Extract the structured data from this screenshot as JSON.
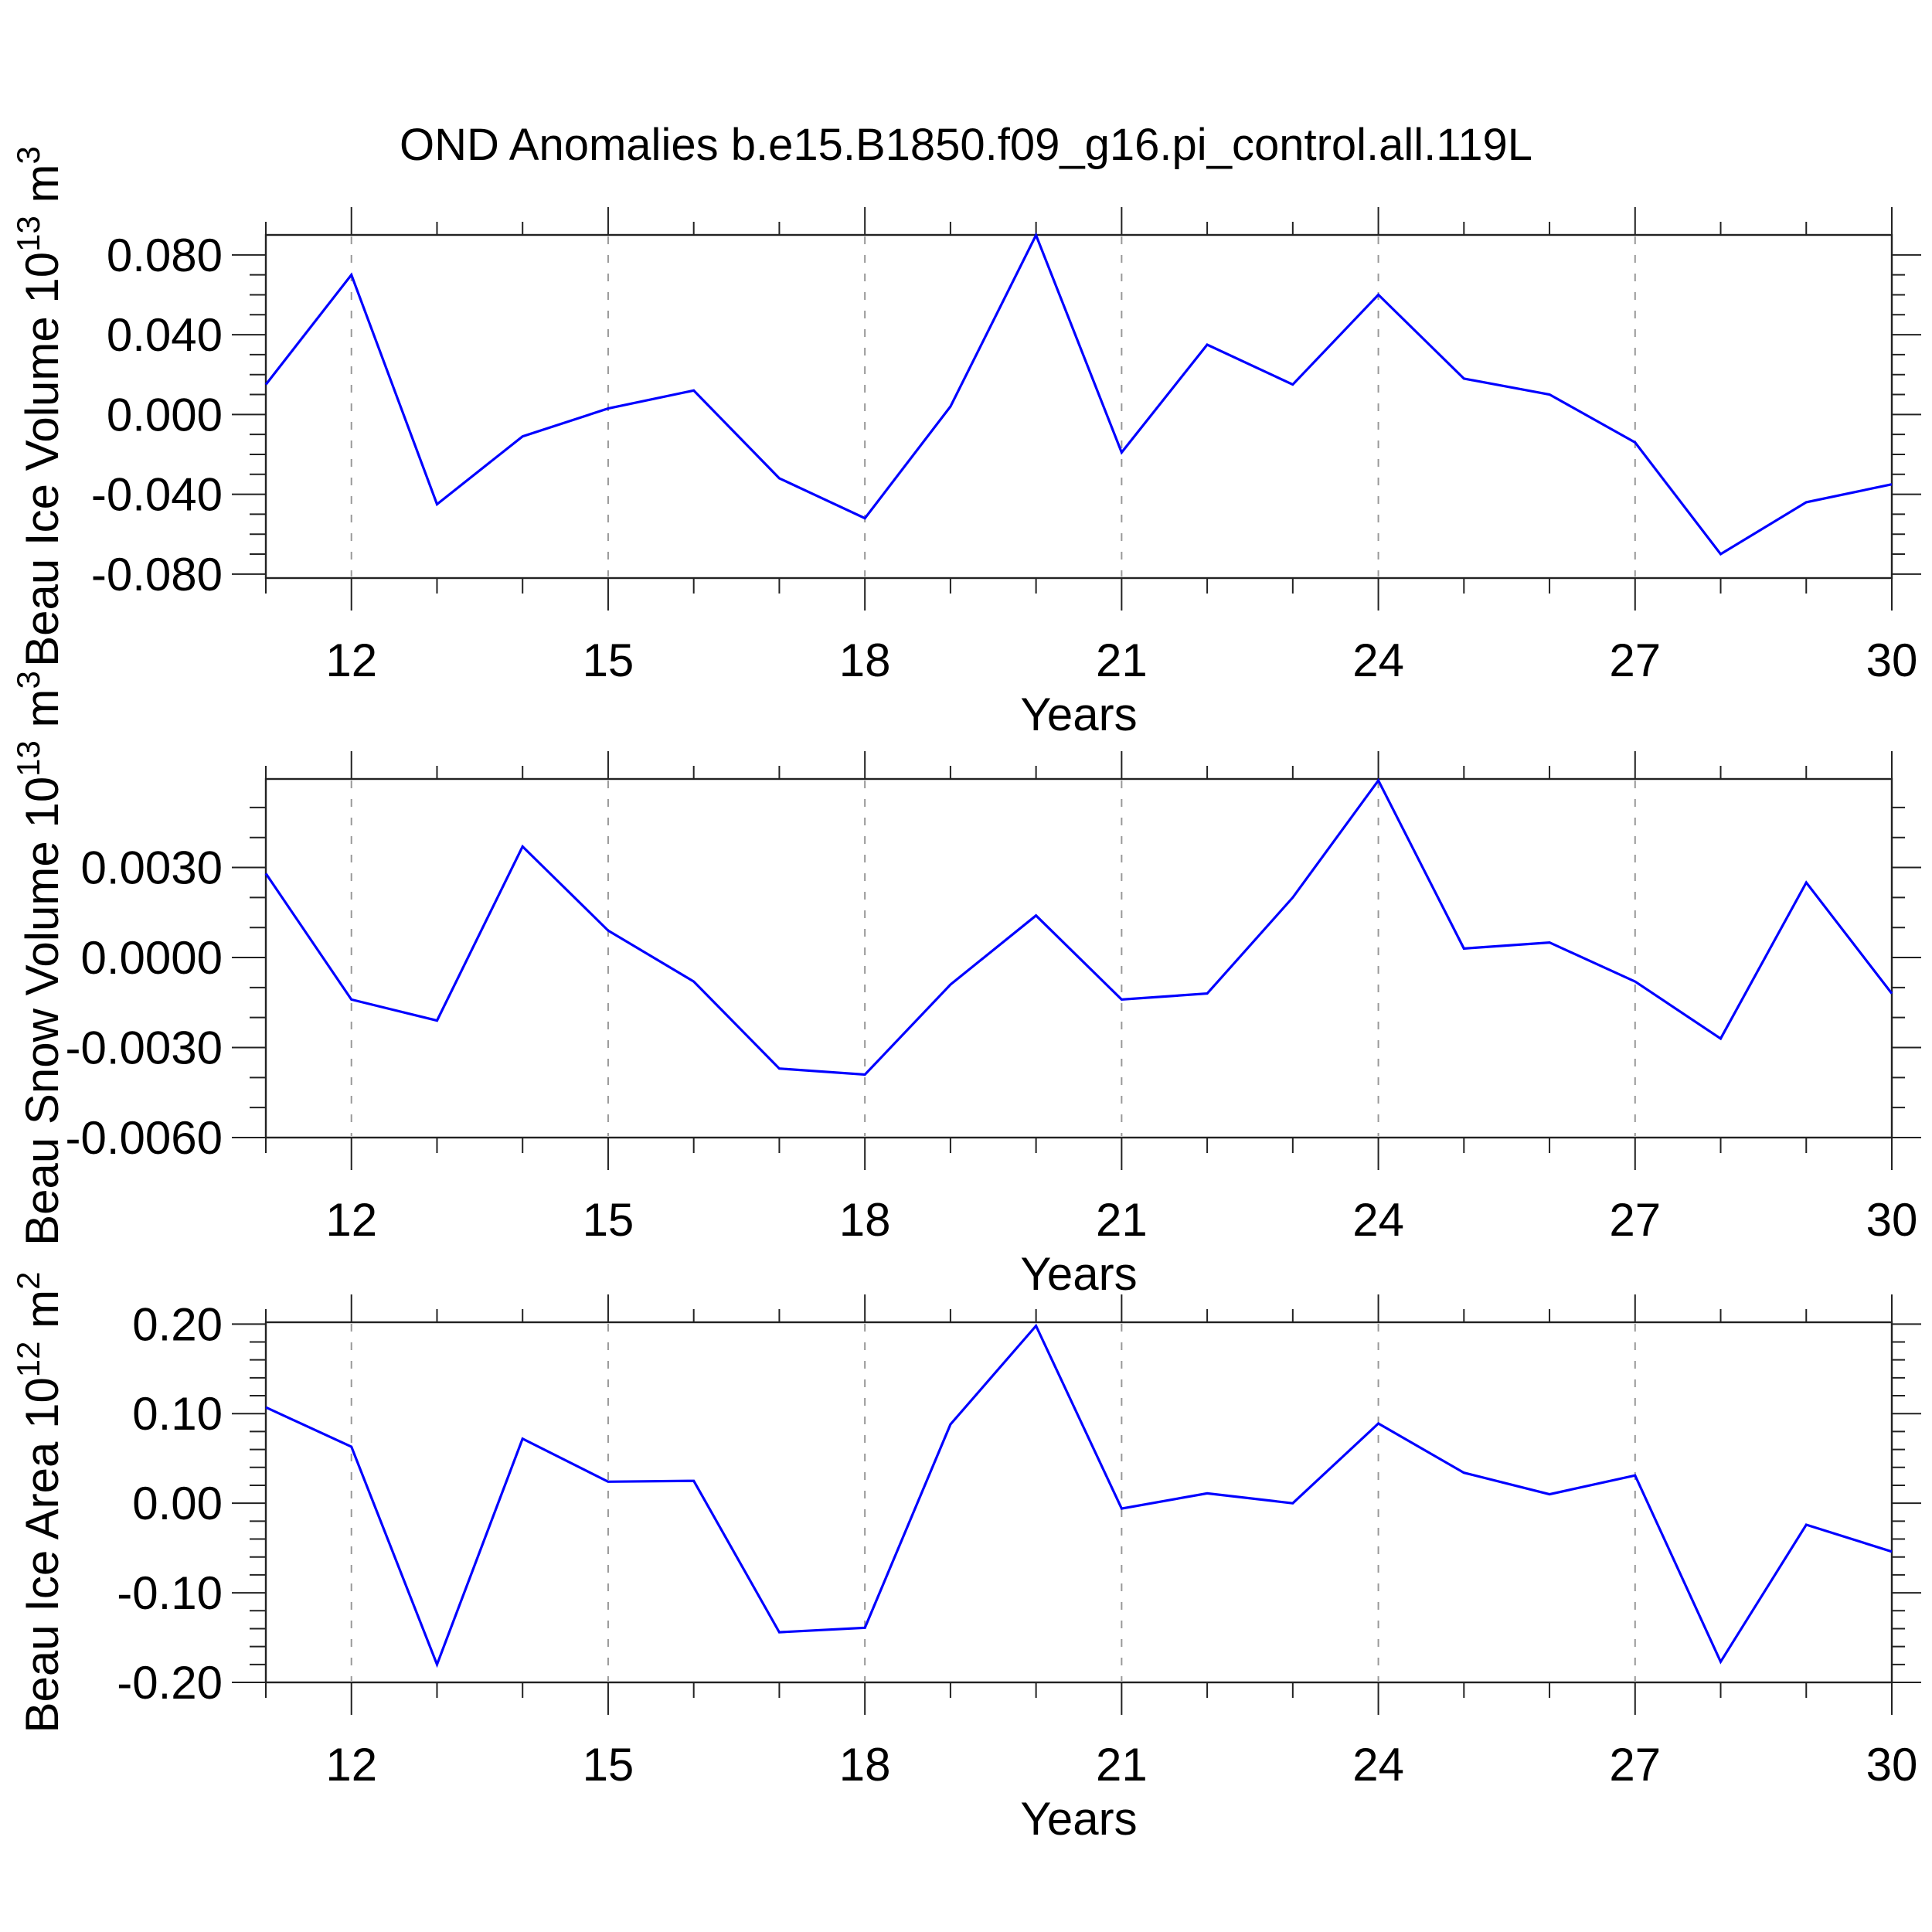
{
  "title": "OND Anomalies b.e15.B1850.f09_g16.pi_control.all.119L",
  "xlabel": "Years",
  "colors": {
    "line": "#0000ff",
    "axis": "#222222",
    "grid": "#999999",
    "text": "#000000",
    "background": "#ffffff"
  },
  "chart_data": [
    {
      "type": "line",
      "name": "beau-ice-volume",
      "ylabel": "Beau Ice Volume 10^13 m^3",
      "ylabel_segments": [
        {
          "t": "Beau Ice Volume 10"
        },
        {
          "t": "13",
          "sup": true
        },
        {
          "t": " m"
        },
        {
          "t": "3",
          "sup": true
        }
      ],
      "x": [
        11,
        12,
        13,
        14,
        15,
        16,
        17,
        18,
        19,
        20,
        21,
        22,
        23,
        24,
        25,
        26,
        27,
        28,
        29,
        30
      ],
      "values": [
        0.015,
        0.07,
        -0.045,
        -0.011,
        0.003,
        0.012,
        -0.032,
        -0.052,
        0.004,
        0.0899,
        -0.019,
        0.035,
        0.015,
        0.06,
        0.018,
        0.01,
        -0.014,
        -0.07,
        -0.044,
        -0.035
      ],
      "xlim": [
        11,
        30
      ],
      "ylim": [
        -0.082,
        0.09
      ],
      "ytick_values": [
        0.08,
        0.04,
        0.0,
        -0.04,
        -0.08
      ],
      "ytick_labels": [
        "0.080",
        "0.040",
        "0.000",
        "-0.040",
        "-0.080"
      ],
      "ytick_minor_step": 0.01,
      "xticks_major": [
        12,
        15,
        18,
        21,
        24,
        27,
        30
      ],
      "xtick_minor_step": 1,
      "xlabel": "Years",
      "grid": "vertical dashed at major x ticks",
      "legend": "none"
    },
    {
      "type": "line",
      "name": "beau-snow-volume",
      "ylabel": "Beau Snow Volume 10^13 m^3",
      "ylabel_segments": [
        {
          "t": "Beau Snow Volume 10"
        },
        {
          "t": "13",
          "sup": true
        },
        {
          "t": " m"
        },
        {
          "t": "3",
          "sup": true
        }
      ],
      "x": [
        11,
        12,
        13,
        14,
        15,
        16,
        17,
        18,
        19,
        20,
        21,
        22,
        23,
        24,
        25,
        26,
        27,
        28,
        29,
        30
      ],
      "values": [
        0.0028,
        -0.0014,
        -0.0021,
        0.0037,
        0.0009,
        -0.0008,
        -0.0037,
        -0.0039,
        -0.0009,
        0.0014,
        -0.0014,
        -0.0012,
        0.002,
        0.0059,
        0.0003,
        0.0005,
        -0.0008,
        -0.0027,
        0.0025,
        -0.0012
      ],
      "xlim": [
        11,
        30
      ],
      "ylim": [
        -0.006,
        0.00595
      ],
      "ytick_values": [
        0.003,
        0.0,
        -0.003,
        -0.006
      ],
      "ytick_labels": [
        "0.0030",
        "0.0000",
        "-0.0030",
        "-0.0060"
      ],
      "ytick_minor_step": 0.001,
      "xticks_major": [
        12,
        15,
        18,
        21,
        24,
        27,
        30
      ],
      "xtick_minor_step": 1,
      "xlabel": "Years",
      "grid": "vertical dashed at major x ticks",
      "legend": "none"
    },
    {
      "type": "line",
      "name": "beau-ice-area",
      "ylabel": "Beau Ice Area 10^12 m^2",
      "ylabel_segments": [
        {
          "t": "Beau Ice Area 10"
        },
        {
          "t": "12",
          "sup": true
        },
        {
          "t": " m"
        },
        {
          "t": "2",
          "sup": true
        }
      ],
      "x": [
        11,
        12,
        13,
        14,
        15,
        16,
        17,
        18,
        19,
        20,
        21,
        22,
        23,
        24,
        25,
        26,
        27,
        28,
        29,
        30
      ],
      "values": [
        0.107,
        0.063,
        -0.18,
        0.072,
        0.024,
        0.025,
        -0.144,
        -0.139,
        0.088,
        0.198,
        -0.006,
        0.011,
        0.0,
        0.089,
        0.034,
        0.01,
        0.031,
        -0.177,
        -0.024,
        -0.054
      ],
      "xlim": [
        11,
        30
      ],
      "ylim": [
        -0.2,
        0.202
      ],
      "ytick_values": [
        0.2,
        0.1,
        0.0,
        -0.1,
        -0.2
      ],
      "ytick_labels": [
        "0.20",
        "0.10",
        "0.00",
        "-0.10",
        "-0.20"
      ],
      "ytick_minor_step": 0.02,
      "xticks_major": [
        12,
        15,
        18,
        21,
        24,
        27,
        30
      ],
      "xtick_minor_step": 1,
      "xlabel": "Years",
      "grid": "vertical dashed at major x ticks",
      "legend": "none"
    }
  ]
}
